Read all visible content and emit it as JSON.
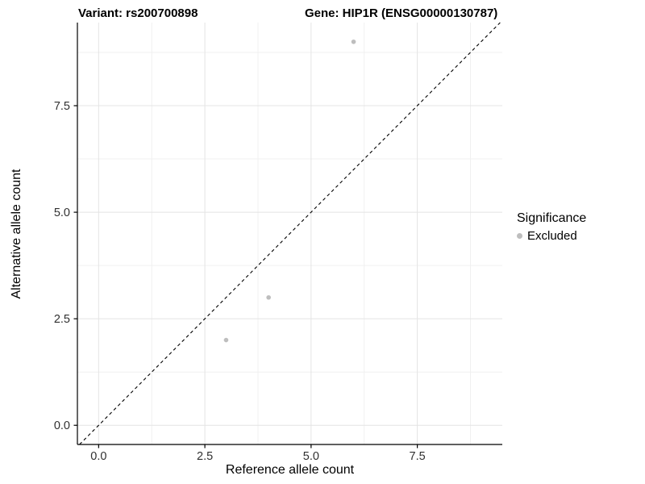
{
  "chart_data": {
    "type": "scatter",
    "title_left": "Variant: rs200700898",
    "title_right": "Gene: HIP1R (ENSG00000130787)",
    "xlabel": "Reference allele count",
    "ylabel": "Alternative allele count",
    "xlim": [
      -0.5,
      9.5
    ],
    "ylim": [
      -0.45,
      9.45
    ],
    "major_ticks": [
      0,
      2.5,
      5,
      7.5
    ],
    "tick_labels": [
      "0.0",
      "2.5",
      "5.0",
      "7.5"
    ],
    "minor_ticks": [
      1.25,
      3.75,
      6.25,
      8.75
    ],
    "grid": "major+minor",
    "identity_line": {
      "slope": 1,
      "intercept": 0,
      "style": "dashed",
      "color": "#000000"
    },
    "series": [
      {
        "name": "Excluded",
        "color": "#bebebe",
        "points": [
          [
            3,
            2
          ],
          [
            4,
            3
          ],
          [
            6,
            9
          ]
        ]
      }
    ],
    "legend": {
      "title": "Significance",
      "position": "right",
      "entries": [
        {
          "label": "Excluded",
          "color": "#bebebe"
        }
      ]
    }
  },
  "colors": {
    "background": "#ffffff",
    "axis_line": "#000000",
    "tick_mark": "#000000",
    "tick_text": "#303030",
    "grid_major": "#e4e4e4",
    "grid_minor": "#f0f0f0",
    "title_text": "#000000"
  }
}
